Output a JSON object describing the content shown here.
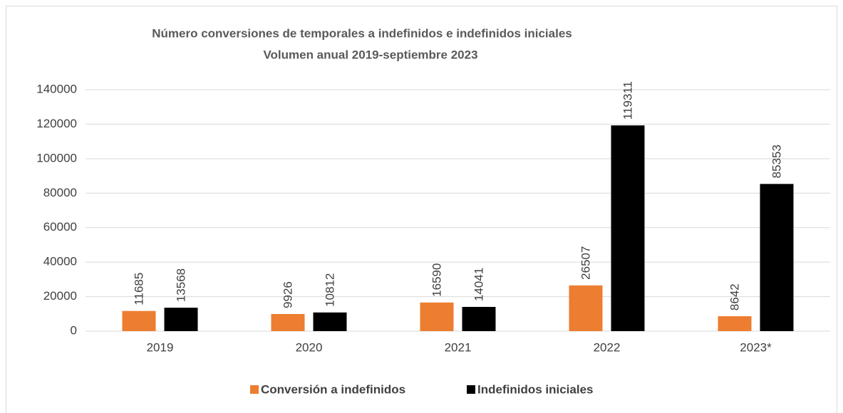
{
  "chart_data": {
    "type": "bar",
    "title": "Número conversiones de temporales a indefinidos e indefinidos iniciales",
    "subtitle": "Volumen anual 2019-septiembre 2023",
    "categories": [
      "2019",
      "2020",
      "2021",
      "2022",
      "2023*"
    ],
    "series": [
      {
        "name": "Conversión a indefinidos",
        "color": "#ed7d31",
        "values": [
          11685,
          9926,
          16590,
          26507,
          8642
        ]
      },
      {
        "name": "Indefinidos iniciales",
        "color": "#000000",
        "values": [
          13568,
          10812,
          14041,
          119311,
          85353
        ]
      }
    ],
    "ylim": [
      0,
      140000
    ],
    "yticks": [
      0,
      20000,
      40000,
      60000,
      80000,
      100000,
      120000,
      140000
    ],
    "grid": true,
    "legend": "bottom"
  }
}
